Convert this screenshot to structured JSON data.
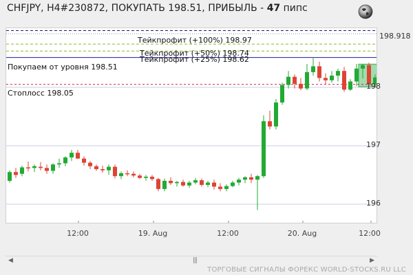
{
  "header": {
    "prefix": "CHFJPY, H4#230872, ПОКУПАТЬ 198.51, ПРИБЫЛЬ - ",
    "profit": "47",
    "suffix": " пипс"
  },
  "levels": {
    "tp100": "Тейкпрофит (+100%) 198.97",
    "tp50": "Тейкпрофит (+50%) 198.74",
    "tp25": "Тейкпрофит (+25%) 198.62",
    "entry": "Покупаем от уровня 198.51",
    "stop": "Стоплосс 198.05"
  },
  "price_axis": [
    "198.918",
    "198",
    "197",
    "196"
  ],
  "time_axis": [
    "12:00",
    "19. Aug",
    "12:00",
    "20. Aug",
    "12:00"
  ],
  "footer": "ТОРГОВЫЕ СИГНАЛЫ ФОРЕКС WORLD-STOCKS.RU LLC",
  "icons": {
    "globe": "globe-icon",
    "left": "arrow-left-icon",
    "right": "arrow-right-icon",
    "thumb": "scroll-thumb-icon"
  },
  "colors": {
    "up": "#22aa33",
    "down": "#dd4433",
    "tp": "#88bb22",
    "entry": "#1a1aa0",
    "stop": "#cc2244"
  },
  "chart_data": {
    "type": "candlestick",
    "symbol": "CHFJPY",
    "timeframe": "H4",
    "current_price": 198.918,
    "y_ticks": [
      196,
      197,
      198
    ],
    "x_ticks": [
      "12:00",
      "19. Aug",
      "12:00",
      "20. Aug",
      "12:00"
    ],
    "levels": [
      {
        "label": "Тейкпрофит (+100%) 198.97",
        "value": 198.97
      },
      {
        "label": "Тейкпрофит (+50%) 198.74",
        "value": 198.74
      },
      {
        "label": "Тейкпрофит (+25%) 198.62",
        "value": 198.62
      },
      {
        "label": "Покупаем от уровня 198.51",
        "value": 198.51
      },
      {
        "label": "Стоплосс 198.05",
        "value": 198.05
      }
    ],
    "ohlc": [
      [
        196.4,
        196.58,
        196.37,
        196.55
      ],
      [
        196.55,
        196.62,
        196.45,
        196.5
      ],
      [
        196.52,
        196.66,
        196.48,
        196.63
      ],
      [
        196.63,
        196.73,
        196.56,
        196.62
      ],
      [
        196.62,
        196.68,
        196.55,
        196.65
      ],
      [
        196.64,
        196.72,
        196.58,
        196.62
      ],
      [
        196.62,
        196.68,
        196.52,
        196.57
      ],
      [
        196.57,
        196.7,
        196.52,
        196.68
      ],
      [
        196.68,
        196.78,
        196.62,
        196.7
      ],
      [
        196.7,
        196.82,
        196.65,
        196.8
      ],
      [
        196.8,
        196.93,
        196.74,
        196.88
      ],
      [
        196.88,
        196.93,
        196.78,
        196.78
      ],
      [
        196.78,
        196.82,
        196.66,
        196.71
      ],
      [
        196.71,
        196.74,
        196.6,
        196.65
      ],
      [
        196.65,
        196.68,
        196.57,
        196.6
      ],
      [
        196.6,
        196.66,
        196.54,
        196.58
      ],
      [
        196.58,
        196.68,
        196.5,
        196.64
      ],
      [
        196.64,
        196.68,
        196.44,
        196.48
      ],
      [
        196.48,
        196.56,
        196.43,
        196.53
      ],
      [
        196.53,
        196.58,
        196.48,
        196.52
      ],
      [
        196.52,
        196.56,
        196.46,
        196.49
      ],
      [
        196.49,
        196.52,
        196.43,
        196.45
      ],
      [
        196.45,
        196.5,
        196.4,
        196.47
      ],
      [
        196.47,
        196.5,
        196.4,
        196.43
      ],
      [
        196.43,
        196.45,
        196.22,
        196.26
      ],
      [
        196.26,
        196.44,
        196.22,
        196.4
      ],
      [
        196.4,
        196.46,
        196.33,
        196.36
      ],
      [
        196.36,
        196.4,
        196.3,
        196.38
      ],
      [
        196.38,
        196.42,
        196.3,
        196.32
      ],
      [
        196.32,
        196.4,
        196.28,
        196.37
      ],
      [
        196.37,
        196.45,
        196.34,
        196.41
      ],
      [
        196.41,
        196.44,
        196.3,
        196.33
      ],
      [
        196.33,
        196.4,
        196.29,
        196.37
      ],
      [
        196.37,
        196.42,
        196.25,
        196.3
      ],
      [
        196.3,
        196.36,
        196.22,
        196.26
      ],
      [
        196.26,
        196.34,
        196.22,
        196.31
      ],
      [
        196.31,
        196.4,
        196.29,
        196.37
      ],
      [
        196.37,
        196.45,
        196.32,
        196.42
      ],
      [
        196.42,
        196.48,
        196.36,
        196.46
      ],
      [
        196.46,
        196.52,
        196.36,
        196.42
      ],
      [
        196.42,
        196.5,
        195.9,
        196.48
      ],
      [
        196.48,
        197.52,
        196.45,
        197.42
      ],
      [
        197.42,
        197.6,
        197.28,
        197.33
      ],
      [
        197.33,
        197.8,
        197.28,
        197.74
      ],
      [
        197.74,
        198.08,
        197.7,
        198.04
      ],
      [
        198.04,
        198.28,
        197.98,
        198.18
      ],
      [
        198.18,
        198.22,
        197.98,
        198.06
      ],
      [
        198.06,
        198.16,
        197.95,
        197.98
      ],
      [
        197.98,
        198.4,
        197.95,
        198.26
      ],
      [
        198.26,
        198.5,
        198.2,
        198.36
      ],
      [
        198.36,
        198.44,
        198.1,
        198.16
      ],
      [
        198.16,
        198.24,
        198.05,
        198.12
      ],
      [
        198.12,
        198.28,
        198.08,
        198.2
      ],
      [
        198.2,
        198.32,
        198.1,
        198.28
      ],
      [
        198.28,
        198.35,
        197.92,
        197.96
      ],
      [
        197.96,
        198.14,
        197.94,
        198.1
      ],
      [
        198.1,
        198.4,
        198.02,
        198.32
      ],
      [
        198.32,
        198.4,
        198.15,
        198.38
      ],
      [
        198.38,
        198.42,
        198.01,
        198.06
      ],
      [
        198.06,
        198.22,
        198.03,
        198.17
      ],
      [
        198.17,
        198.26,
        198.1,
        198.2
      ],
      [
        198.2,
        198.28,
        198.12,
        198.24
      ],
      [
        198.24,
        198.36,
        198.2,
        198.33
      ],
      [
        198.33,
        198.42,
        198.08,
        198.36
      ],
      [
        198.36,
        198.6,
        198.3,
        198.56
      ],
      [
        198.56,
        198.97,
        198.5,
        198.88
      ]
    ],
    "highlight_range": {
      "from_index": 57,
      "to_index": 59
    }
  }
}
